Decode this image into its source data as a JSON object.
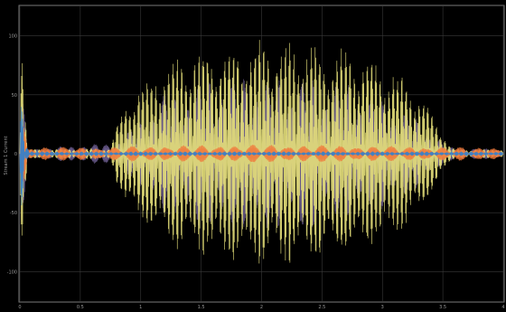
{
  "plot": {
    "background": "#000000",
    "frame_color": "#7a7a7a",
    "grid_color": "#3a3a3a",
    "ylabel": "Stream 1 Current",
    "y_ticks": [
      "100",
      "50",
      "0",
      "-50",
      "-100"
    ],
    "x_ticks": [
      "0",
      "0.5",
      "1",
      "1.5",
      "2",
      "2.5",
      "3",
      "3.5",
      "4"
    ]
  },
  "chart_data": {
    "type": "line",
    "title": "",
    "xlabel": "",
    "ylabel": "Stream 1 Current",
    "xlim": [
      0,
      4
    ],
    "ylim": [
      -125,
      125
    ],
    "grid": true,
    "series": [
      {
        "color": "#e6e07a",
        "envelope_x": [
          0,
          0.02,
          0.06,
          0.75,
          0.8,
          0.9,
          1.1,
          1.3,
          1.6,
          2.0,
          2.4,
          2.8,
          3.2,
          3.4,
          3.55,
          3.6,
          4.0
        ],
        "envelope_amplitude": [
          120,
          110,
          4,
          5,
          25,
          50,
          70,
          84,
          93,
          98,
          96,
          88,
          66,
          38,
          8,
          4,
          4
        ]
      },
      {
        "color": "#6b5d8f",
        "envelope_x": [
          0,
          0.06,
          0.8,
          1.2,
          1.6,
          2.0,
          2.4,
          2.8,
          3.2,
          3.55,
          4.0
        ],
        "envelope_amplitude": [
          100,
          4,
          10,
          55,
          68,
          70,
          68,
          60,
          40,
          6,
          4
        ]
      },
      {
        "color": "#f07a3c",
        "envelope_x": [
          0,
          0.06,
          0.75,
          1.0,
          2.0,
          3.0,
          3.55,
          4.0
        ],
        "envelope_amplitude": [
          90,
          6,
          6,
          7,
          8,
          7,
          6,
          6
        ]
      },
      {
        "color": "#2f7fd0",
        "envelope_x": [
          0,
          0.02,
          0.05,
          0.1,
          4.0
        ],
        "envelope_amplitude": [
          125,
          60,
          8,
          2,
          2
        ]
      }
    ]
  }
}
